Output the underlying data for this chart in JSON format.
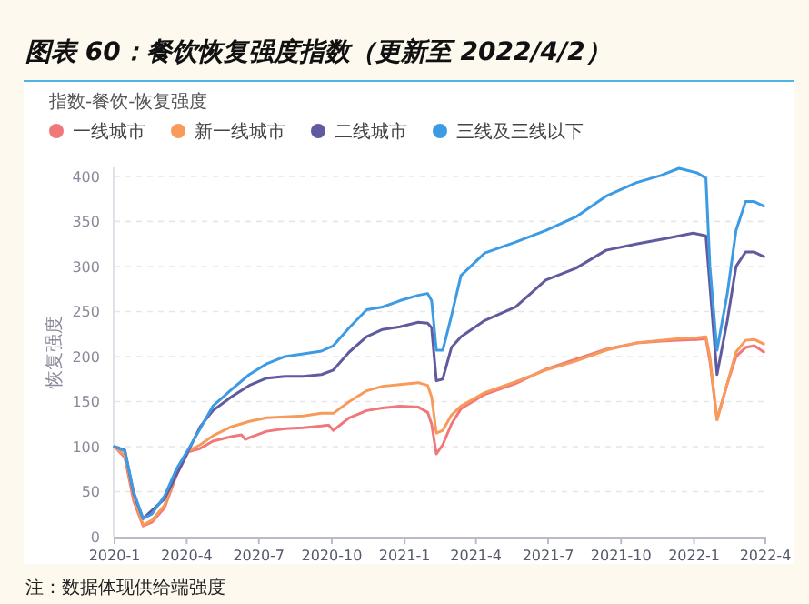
{
  "chart_data": {
    "type": "line",
    "title": "图表 60：餐饮恢复强度指数（更新至 2022/4/2）",
    "subtitle": "指数-餐饮-恢复强度",
    "ylabel": "恢复强度",
    "annotations": [
      "注：数据体现供给端强度"
    ],
    "x": [
      "2020-01-01",
      "2020-01-14",
      "2020-01-25",
      "2020-02-06",
      "2020-02-17",
      "2020-03-04",
      "2020-03-19",
      "2020-04-03",
      "2020-04-18",
      "2020-05-04",
      "2020-05-27",
      "2020-06-19",
      "2020-07-11",
      "2020-08-03",
      "2020-08-26",
      "2020-09-18",
      "2020-10-03",
      "2020-10-23",
      "2020-11-14",
      "2020-12-04",
      "2020-12-26",
      "2021-01-18",
      "2021-01-30",
      "2021-02-04",
      "2021-02-10",
      "2021-02-18",
      "2021-03-01",
      "2021-03-13",
      "2021-04-12",
      "2021-05-21",
      "2021-06-28",
      "2021-08-05",
      "2021-09-12",
      "2021-10-20",
      "2021-11-20",
      "2021-12-13",
      "2022-01-05",
      "2022-01-16",
      "2022-01-21",
      "2022-01-30",
      "2022-02-12",
      "2022-02-23",
      "2022-03-07",
      "2022-03-18",
      "2022-03-30"
    ],
    "series": [
      {
        "name": "一线城市",
        "color": "#f0787a",
        "x": [
          "2020-01-01",
          "2020-01-14",
          "2020-01-25",
          "2020-02-06",
          "2020-02-17",
          "2020-03-04",
          "2020-03-19",
          "2020-04-03",
          "2020-04-18",
          "2020-05-04",
          "2020-05-27",
          "2020-06-09",
          "2020-06-14",
          "2020-06-19",
          "2020-07-11",
          "2020-08-03",
          "2020-08-26",
          "2020-09-18",
          "2020-09-27",
          "2020-10-03",
          "2020-10-23",
          "2020-11-14",
          "2020-12-04",
          "2020-12-26",
          "2021-01-18",
          "2021-01-30",
          "2021-02-04",
          "2021-02-10",
          "2021-02-18",
          "2021-03-01",
          "2021-03-13",
          "2021-04-12",
          "2021-05-21",
          "2021-06-28",
          "2021-08-05",
          "2021-09-12",
          "2021-10-20",
          "2021-11-20",
          "2021-12-13",
          "2022-01-05",
          "2022-01-16",
          "2022-01-21",
          "2022-01-30",
          "2022-02-12",
          "2022-02-23",
          "2022-03-07",
          "2022-03-18",
          "2022-03-30"
        ],
        "values": [
          100,
          88,
          40,
          12,
          16,
          32,
          68,
          94,
          98,
          106,
          111,
          113,
          108,
          110,
          117,
          120,
          121,
          123,
          124,
          118,
          132,
          140,
          143,
          145,
          144,
          138,
          125,
          92,
          102,
          125,
          142,
          158,
          170,
          186,
          197,
          208,
          215,
          217,
          218,
          219,
          220,
          195,
          130,
          170,
          200,
          210,
          212,
          205
        ]
      },
      {
        "name": "新一线城市",
        "color": "#f79a5a",
        "values": [
          100,
          90,
          45,
          13,
          18,
          35,
          70,
          95,
          102,
          112,
          122,
          128,
          132,
          133,
          134,
          137,
          137,
          150,
          162,
          167,
          169,
          171,
          168,
          155,
          115,
          118,
          135,
          145,
          160,
          172,
          185,
          195,
          207,
          215,
          218,
          220,
          221,
          222,
          200,
          130,
          170,
          205,
          218,
          219,
          214
        ]
      },
      {
        "name": "二线城市",
        "color": "#5f5b9e",
        "x": [
          "2020-01-01",
          "2020-01-14",
          "2020-01-25",
          "2020-02-06",
          "2020-03-04",
          "2020-04-03",
          "2020-04-18",
          "2020-05-04",
          "2020-05-27",
          "2020-06-19",
          "2020-07-11",
          "2020-08-03",
          "2020-08-26",
          "2020-09-18",
          "2020-10-03",
          "2020-10-23",
          "2020-11-14",
          "2020-12-04",
          "2020-12-26",
          "2021-01-18",
          "2021-01-30",
          "2021-02-04",
          "2021-02-10",
          "2021-02-18",
          "2021-03-01",
          "2021-03-13",
          "2021-04-12",
          "2021-05-21",
          "2021-06-28",
          "2021-08-05",
          "2021-09-12",
          "2021-10-20",
          "2021-11-26",
          "2021-12-31",
          "2022-01-16",
          "2022-01-30",
          "2022-02-12",
          "2022-02-23",
          "2022-03-07",
          "2022-03-18",
          "2022-03-30"
        ],
        "values": [
          100,
          96,
          48,
          20,
          42,
          95,
          122,
          140,
          155,
          168,
          176,
          178,
          178,
          180,
          185,
          205,
          222,
          230,
          233,
          238,
          237,
          232,
          173,
          175,
          210,
          222,
          240,
          255,
          285,
          298,
          318,
          325,
          331,
          337,
          334,
          180,
          240,
          300,
          316,
          316,
          311
        ]
      },
      {
        "name": "三线及三线以下",
        "color": "#3d9be3",
        "values": [
          100,
          95,
          50,
          20,
          25,
          45,
          75,
          97,
          120,
          145,
          163,
          180,
          192,
          200,
          203,
          206,
          212,
          232,
          252,
          255,
          262,
          268,
          270,
          262,
          207,
          207,
          245,
          290,
          315,
          327,
          340,
          355,
          378,
          393,
          401,
          409,
          404,
          398,
          300,
          207,
          270,
          340,
          372,
          372,
          367
        ]
      }
    ],
    "xlim": [
      "2020-01-01",
      "2022-04-01"
    ],
    "xticks": [
      {
        "value": "2020-01-01",
        "label": "2020-1"
      },
      {
        "value": "2020-04-01",
        "label": "2020-4"
      },
      {
        "value": "2020-07-01",
        "label": "2020-7"
      },
      {
        "value": "2020-10-01",
        "label": "2020-10"
      },
      {
        "value": "2021-01-01",
        "label": "2021-1"
      },
      {
        "value": "2021-04-01",
        "label": "2021-4"
      },
      {
        "value": "2021-07-01",
        "label": "2021-7"
      },
      {
        "value": "2021-10-01",
        "label": "2021-10"
      },
      {
        "value": "2022-01-01",
        "label": "2022-1"
      },
      {
        "value": "2022-04-01",
        "label": "2022-4"
      }
    ],
    "ylim": [
      0,
      410
    ],
    "yticks": [
      0,
      50,
      100,
      150,
      200,
      250,
      300,
      350,
      400
    ],
    "grid": "y",
    "legend": "top left",
    "marker": "none",
    "line_style": "solid"
  }
}
